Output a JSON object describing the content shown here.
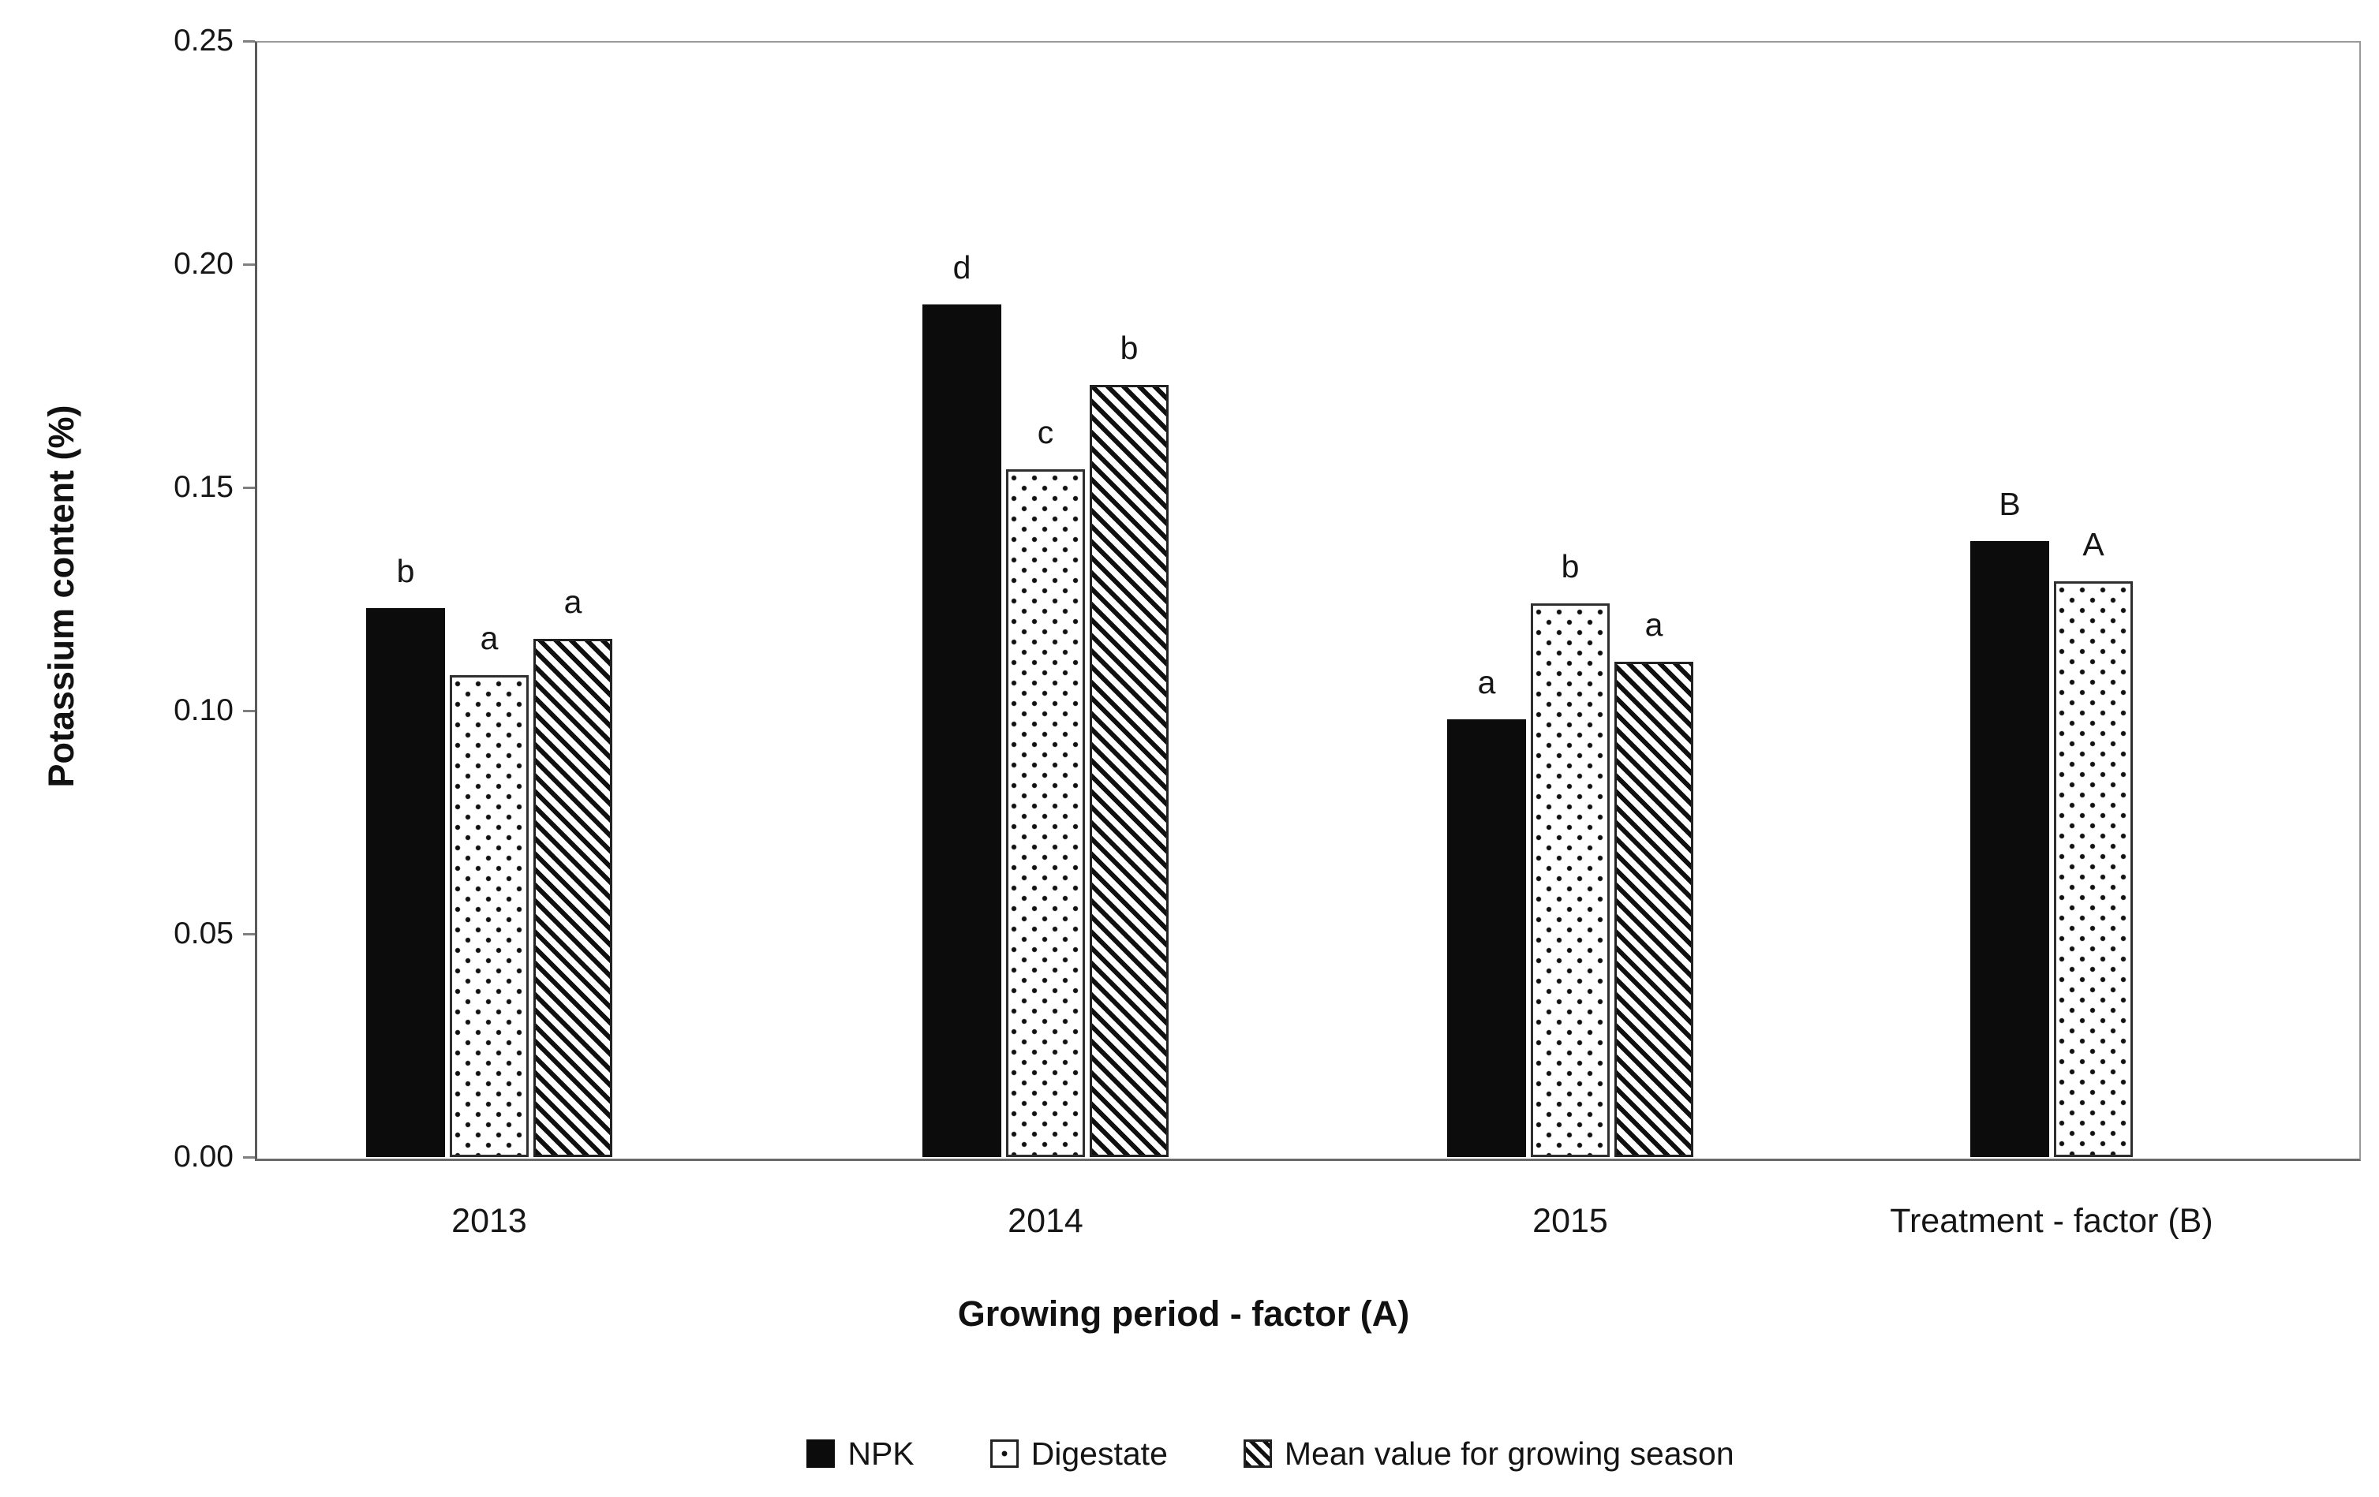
{
  "chart_data": {
    "type": "bar",
    "title": "",
    "xlabel": "Growing period - factor (A)",
    "ylabel": "Potassium content  (%)",
    "ylim": [
      0,
      0.25
    ],
    "ytick_labels": [
      "0.00",
      "0.05",
      "0.10",
      "0.15",
      "0.20",
      "0.25"
    ],
    "categories": [
      "2013",
      "2014",
      "2015",
      "Treatment - factor (B)"
    ],
    "series": [
      {
        "name": "NPK",
        "key": "npk",
        "pattern": "solid",
        "values": [
          0.123,
          0.191,
          0.098,
          0.138
        ],
        "letters": [
          "b",
          "d",
          "a",
          "B"
        ]
      },
      {
        "name": "Digestate",
        "key": "digestate",
        "pattern": "dots",
        "values": [
          0.108,
          0.154,
          0.124,
          0.129
        ],
        "letters": [
          "a",
          "c",
          "b",
          "A"
        ]
      },
      {
        "name": "Mean value for growing season",
        "key": "mean",
        "pattern": "stripes",
        "values": [
          0.116,
          0.173,
          0.111,
          null
        ],
        "letters": [
          "a",
          "b",
          "a",
          null
        ]
      }
    ],
    "grid": false,
    "legend_position": "bottom"
  },
  "colors": {
    "bar_fill": "#0c0c0c",
    "axis_line": "#6a6a6a",
    "text": "#161616",
    "background": "#ffffff"
  }
}
